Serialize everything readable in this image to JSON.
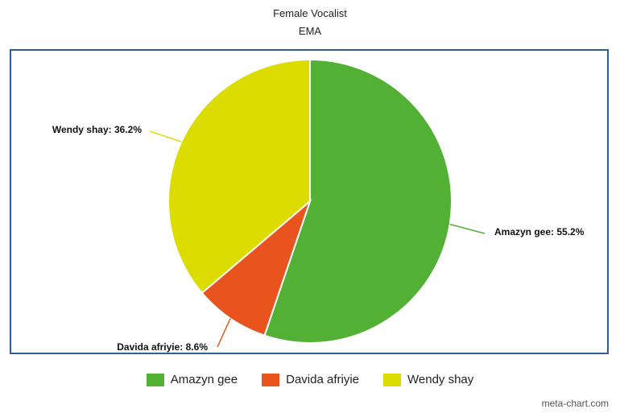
{
  "chart_data": {
    "type": "pie",
    "title": "Female Vocalist",
    "subtitle": "EMA",
    "slices": [
      {
        "label": "Amazyn gee",
        "value": 55.2,
        "data_label": "Amazyn gee: 55.2%",
        "color": "#52b034"
      },
      {
        "label": "Davida afriyie",
        "value": 8.6,
        "data_label": "Davida afriyie: 8.6%",
        "color": "#e8531e"
      },
      {
        "label": "Wendy shay",
        "value": 36.2,
        "data_label": "Wendy shay: 36.2%",
        "color": "#dcdc00"
      }
    ],
    "legend_position": "bottom"
  },
  "credit": "meta-chart.com"
}
